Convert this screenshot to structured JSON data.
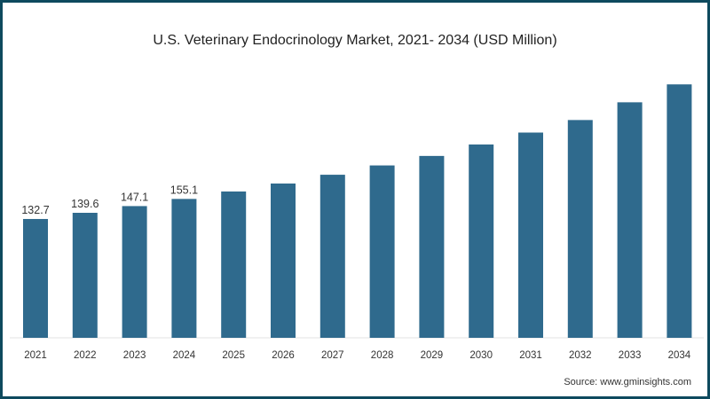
{
  "chart_data": {
    "type": "bar",
    "title": "U.S. Veterinary Endocrinology Market, 2021- 2034 (USD Million)",
    "xlabel": "",
    "ylabel": "",
    "categories": [
      "2021",
      "2022",
      "2023",
      "2024",
      "2025",
      "2026",
      "2027",
      "2028",
      "2029",
      "2030",
      "2031",
      "2032",
      "2033",
      "2034"
    ],
    "values": [
      132.7,
      139.6,
      147.1,
      155.1,
      163.4,
      172.3,
      182.1,
      192.5,
      203.1,
      215.9,
      229.2,
      243.2,
      263.0,
      283.0
    ],
    "data_labels": [
      "132.7",
      "139.6",
      "147.1",
      "155.1",
      null,
      null,
      null,
      null,
      null,
      null,
      null,
      null,
      null,
      null
    ],
    "ylim": [
      0,
      300
    ],
    "grid": false,
    "bar_color": "#2f6a8d",
    "source": "Source: www.gminsights.com"
  },
  "colors": {
    "frame": "#0e4a5e",
    "bar": "#2f6a8d"
  }
}
